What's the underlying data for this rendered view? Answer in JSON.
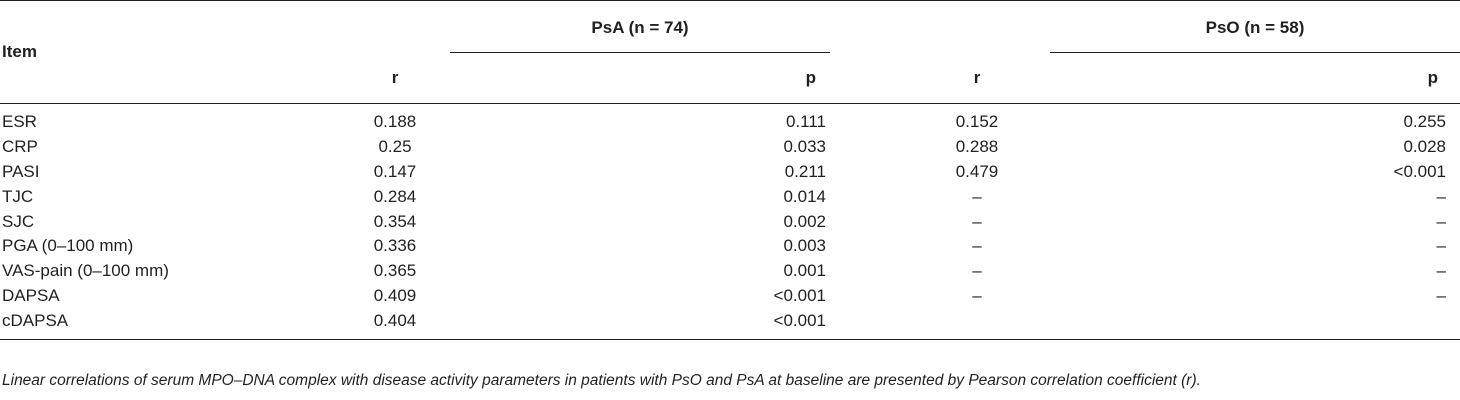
{
  "headers": {
    "item": "Item",
    "group_psa": "PsA (n = 74)",
    "group_pso": "PsO (n = 58)",
    "psa_r": "r",
    "psa_p": "p",
    "pso_r": "r",
    "pso_p": "p"
  },
  "rows": [
    {
      "item": "ESR",
      "psa_r": "0.188",
      "psa_p": "0.111",
      "pso_r": "0.152",
      "pso_p": "0.255"
    },
    {
      "item": "CRP",
      "psa_r": "0.25",
      "psa_p": "0.033",
      "pso_r": "0.288",
      "pso_p": "0.028"
    },
    {
      "item": "PASI",
      "psa_r": "0.147",
      "psa_p": "0.211",
      "pso_r": "0.479",
      "pso_p": "<0.001"
    },
    {
      "item": "TJC",
      "psa_r": "0.284",
      "psa_p": "0.014",
      "pso_r": "–",
      "pso_p": "–"
    },
    {
      "item": "SJC",
      "psa_r": "0.354",
      "psa_p": "0.002",
      "pso_r": "–",
      "pso_p": "–"
    },
    {
      "item": "PGA (0–100 mm)",
      "psa_r": "0.336",
      "psa_p": "0.003",
      "pso_r": "–",
      "pso_p": "–"
    },
    {
      "item": "VAS-pain (0–100 mm)",
      "psa_r": "0.365",
      "psa_p": "0.001",
      "pso_r": "–",
      "pso_p": "–"
    },
    {
      "item": "DAPSA",
      "psa_r": "0.409",
      "psa_p": "<0.001",
      "pso_r": "–",
      "pso_p": "–"
    },
    {
      "item": "cDAPSA",
      "psa_r": "0.404",
      "psa_p": "<0.001",
      "pso_r": "",
      "pso_p": ""
    }
  ],
  "footnote": "Linear correlations of serum MPO–DNA complex with disease activity parameters in patients with PsO and PsA at baseline are presented by Pearson correlation coefficient (r)."
}
